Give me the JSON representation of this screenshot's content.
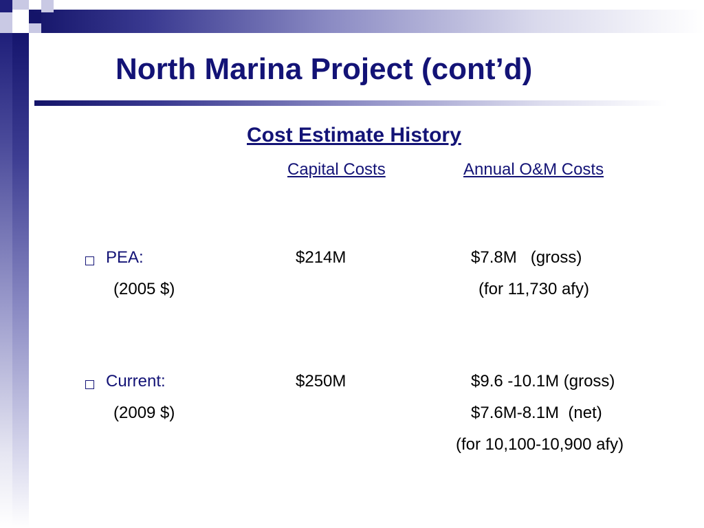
{
  "slide": {
    "title": "North Marina Project (cont’d)",
    "section_heading": "Cost Estimate History",
    "columns": {
      "capital": "Capital Costs",
      "om": "Annual O&M Costs"
    },
    "rows": [
      {
        "label": "PEA:",
        "year_note": "(2005 $)",
        "capital": "$214M",
        "om_lines": [
          "$7.8M   (gross)",
          "(for 11,730 afy)"
        ]
      },
      {
        "label": "Current:",
        "year_note": "(2009 $)",
        "capital": "$250M",
        "om_lines": [
          "$9.6 -10.1M (gross)",
          "$7.6M-8.1M  (net)",
          "(for 10,100-10,900 afy)"
        ]
      }
    ]
  }
}
